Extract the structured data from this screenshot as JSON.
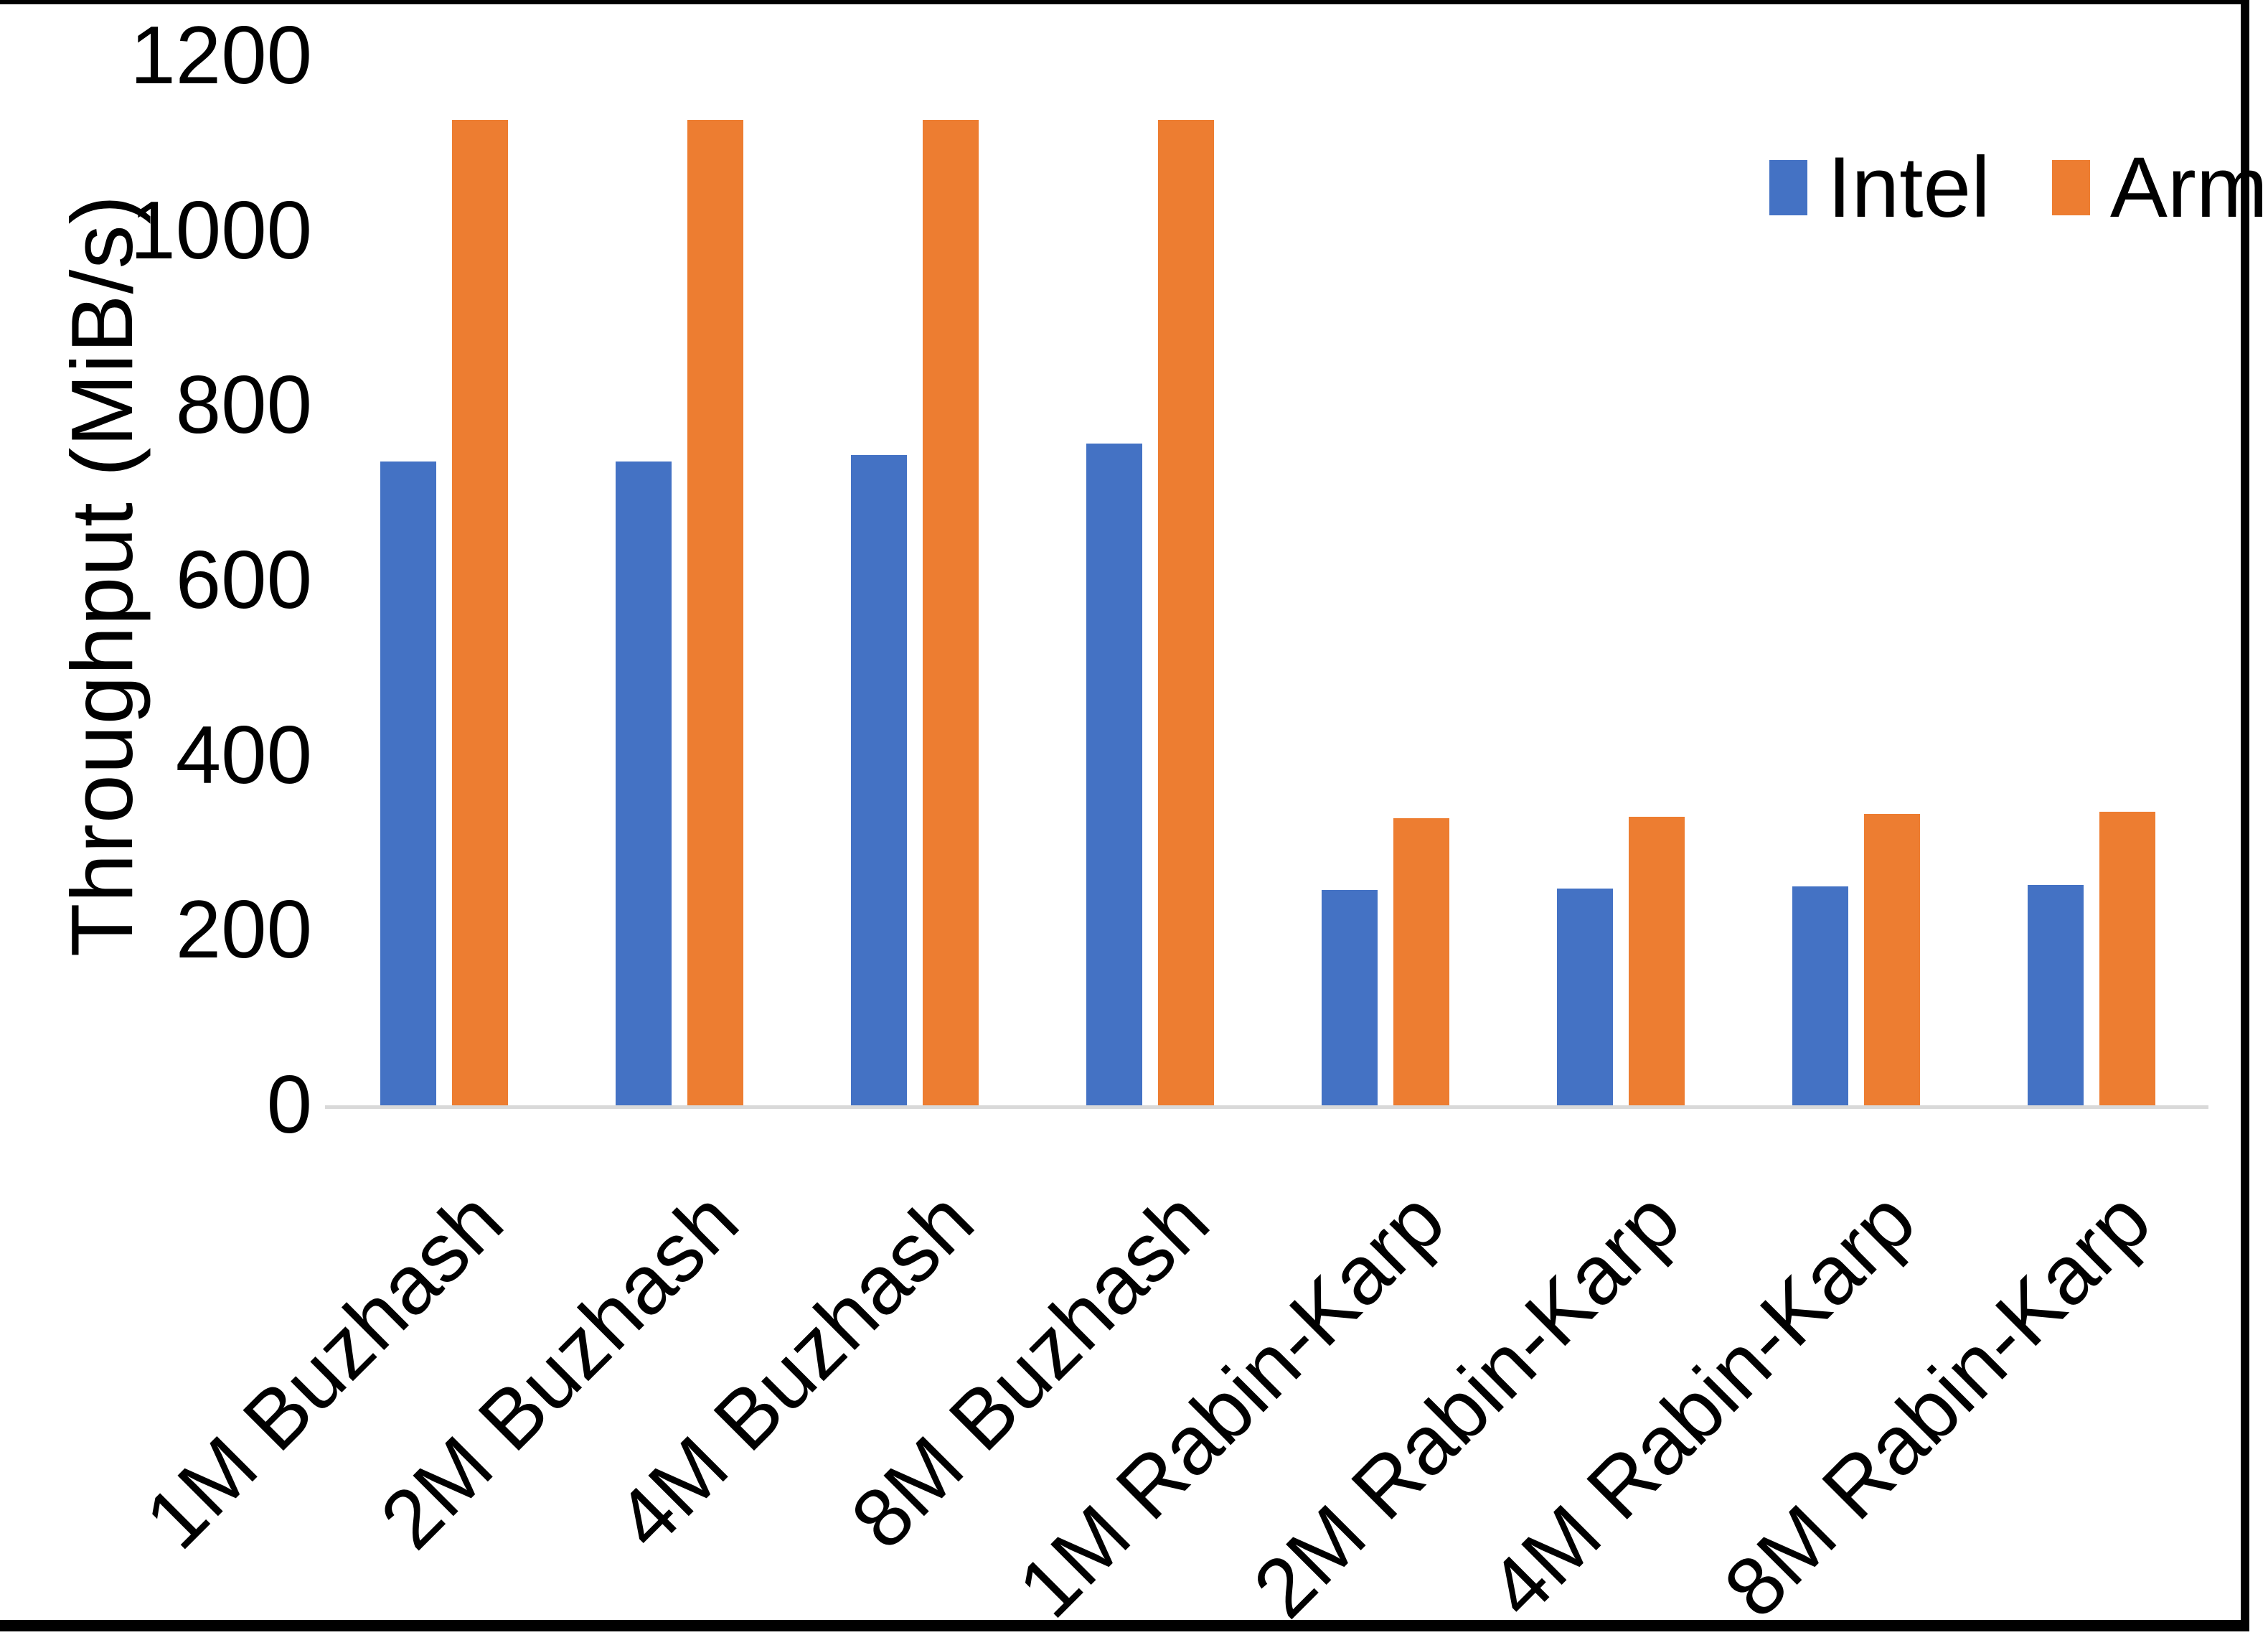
{
  "chart_data": {
    "type": "bar",
    "title": "",
    "xlabel": "",
    "ylabel": "Throughput (MiB/s)",
    "ylim": [
      0,
      1200
    ],
    "yticks": [
      0,
      200,
      400,
      600,
      800,
      1000,
      1200
    ],
    "grid": false,
    "legend_position": "top-right",
    "categories": [
      "1M Buzhash",
      "2M Buzhash",
      "4M Buzhash",
      "8M Buzhash",
      "1M Rabin-Karp",
      "2M Rabin-Karp",
      "4M Rabin-Karp",
      "8M Rabin-Karp"
    ],
    "series": [
      {
        "name": "Intel",
        "color": "#4472C4",
        "values": [
          736,
          736,
          744,
          757,
          246,
          248,
          250,
          252
        ]
      },
      {
        "name": "Arm",
        "color": "#ED7D31",
        "values": [
          1127,
          1127,
          1127,
          1127,
          328,
          330,
          333,
          336
        ]
      }
    ]
  },
  "colors": {
    "background": "#FFFFFF",
    "axis_line": "#D9D9D9",
    "text": "#000000",
    "frame": "#000000",
    "intel": "#4472C4",
    "arm": "#ED7D31"
  }
}
